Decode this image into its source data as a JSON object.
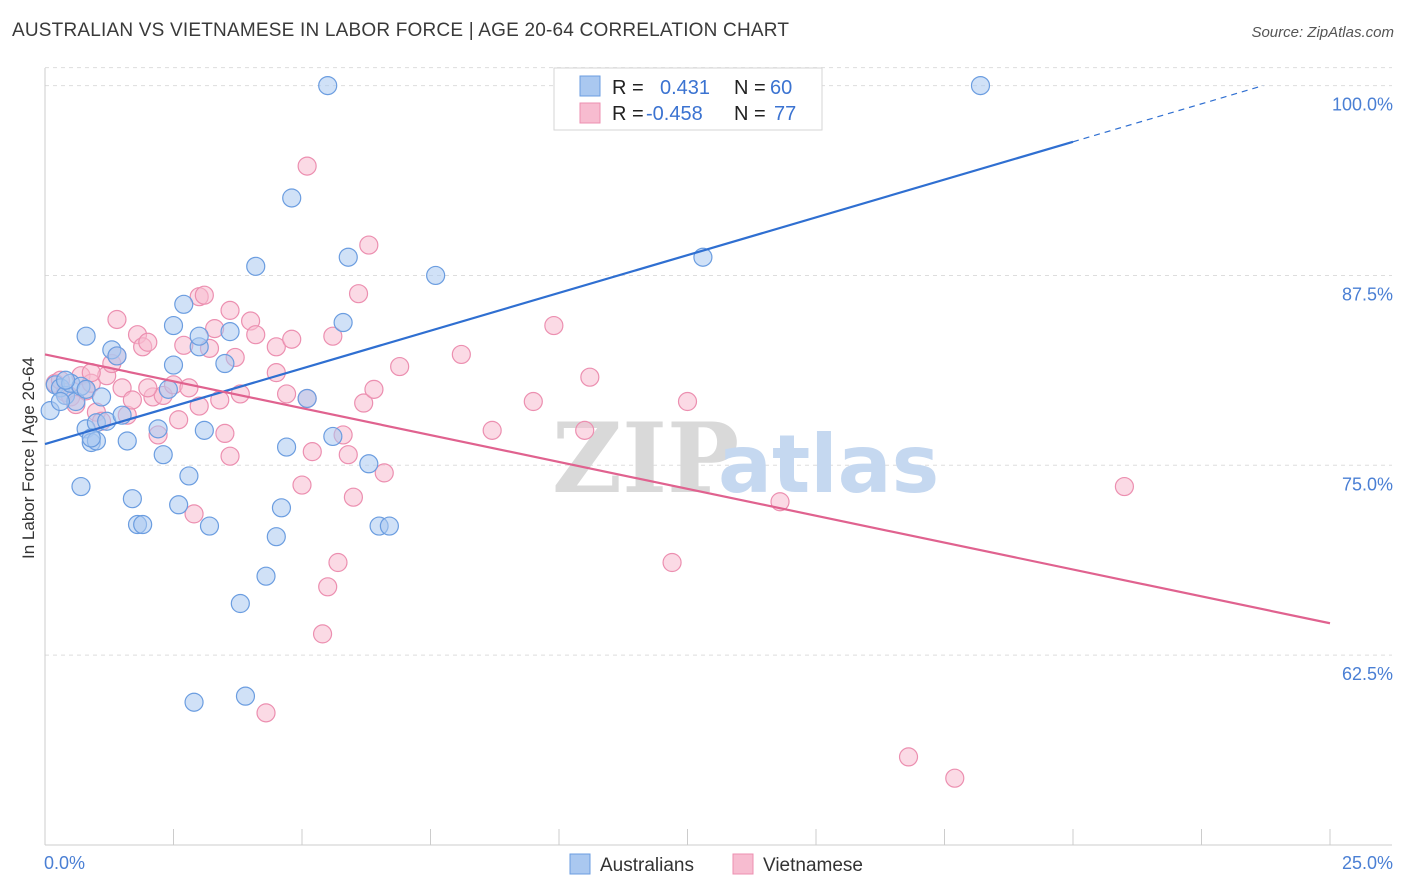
{
  "title": "AUSTRALIAN VS VIETNAMESE IN LABOR FORCE | AGE 20-64 CORRELATION CHART",
  "source": "Source: ZipAtlas.com",
  "watermark": {
    "zip": "ZIP",
    "atlas": "atlas"
  },
  "legend": {
    "rows": [
      {
        "r_label": "R =",
        "r_value": "0.431",
        "n_label": "N =",
        "n_value": "60"
      },
      {
        "r_label": "R =",
        "r_value": "-0.458",
        "n_label": "N =",
        "n_value": "77"
      }
    ]
  },
  "bottom_legend": [
    "Australians",
    "Vietnamese"
  ],
  "colors": {
    "blue_fill": "#aac8f0",
    "blue_stroke": "#6b9de0",
    "blue_line": "#2f6fd1",
    "pink_fill": "#f7bcd0",
    "pink_stroke": "#ec8fb0",
    "pink_line": "#e0628f",
    "grid": "#dddddd",
    "tick_text": "#4a7fd4"
  },
  "chart_data": {
    "type": "scatter",
    "title": "AUSTRALIAN VS VIETNAMESE IN LABOR FORCE | AGE 20-64 CORRELATION CHART",
    "xlabel": "",
    "ylabel": "In Labor Force | Age 20-64",
    "xlim": [
      0,
      25
    ],
    "ylim": [
      50,
      100.5
    ],
    "x_tick_labels": [
      "0.0%",
      "25.0%"
    ],
    "y_ticks": [
      62.5,
      75.0,
      87.5,
      100.0
    ],
    "y_tick_labels": [
      "62.5%",
      "75.0%",
      "87.5%",
      "100.0%"
    ],
    "grid": true,
    "series": [
      {
        "name": "Australians",
        "r": 0.431,
        "n": 60,
        "trend": {
          "x0": 0,
          "y0": 76.4,
          "x1": 20,
          "y1": 96.3,
          "dash_to_x": 23.7,
          "dash_to_y": 100.0
        },
        "points": [
          [
            0.1,
            78.6
          ],
          [
            0.2,
            80.3
          ],
          [
            0.3,
            80.1
          ],
          [
            0.4,
            79.6
          ],
          [
            0.5,
            80.4
          ],
          [
            0.6,
            79.2
          ],
          [
            0.7,
            80.2
          ],
          [
            0.7,
            73.6
          ],
          [
            0.8,
            83.5
          ],
          [
            0.8,
            80.0
          ],
          [
            0.8,
            77.4
          ],
          [
            0.9,
            76.5
          ],
          [
            1.0,
            77.8
          ],
          [
            1.0,
            76.6
          ],
          [
            1.2,
            77.9
          ],
          [
            1.3,
            82.6
          ],
          [
            1.4,
            82.2
          ],
          [
            1.6,
            76.6
          ],
          [
            1.7,
            72.8
          ],
          [
            1.8,
            71.1
          ],
          [
            1.9,
            71.1
          ],
          [
            2.2,
            77.4
          ],
          [
            2.4,
            80.0
          ],
          [
            2.5,
            84.2
          ],
          [
            2.5,
            81.6
          ],
          [
            2.6,
            72.4
          ],
          [
            2.7,
            85.6
          ],
          [
            2.8,
            74.3
          ],
          [
            3.0,
            82.8
          ],
          [
            3.0,
            83.5
          ],
          [
            3.1,
            77.3
          ],
          [
            3.2,
            71.0
          ],
          [
            3.5,
            81.7
          ],
          [
            3.6,
            83.8
          ],
          [
            3.8,
            65.9
          ],
          [
            3.9,
            59.8
          ],
          [
            4.1,
            88.1
          ],
          [
            4.3,
            67.7
          ],
          [
            4.5,
            70.3
          ],
          [
            4.6,
            72.2
          ],
          [
            4.7,
            76.2
          ],
          [
            4.8,
            92.6
          ],
          [
            5.1,
            79.4
          ],
          [
            5.5,
            100.0
          ],
          [
            5.6,
            76.9
          ],
          [
            5.8,
            84.4
          ],
          [
            5.9,
            88.7
          ],
          [
            6.3,
            75.1
          ],
          [
            6.5,
            71.0
          ],
          [
            6.7,
            71.0
          ],
          [
            7.6,
            87.5
          ],
          [
            12.8,
            88.7
          ],
          [
            18.2,
            100.0
          ],
          [
            0.3,
            79.2
          ],
          [
            2.9,
            59.4
          ],
          [
            1.1,
            79.5
          ],
          [
            0.4,
            80.6
          ],
          [
            1.5,
            78.3
          ],
          [
            0.9,
            76.8
          ],
          [
            2.3,
            75.7
          ]
        ]
      },
      {
        "name": "Vietnamese",
        "r": -0.458,
        "n": 77,
        "trend": {
          "x0": 0,
          "y0": 82.3,
          "x1": 25,
          "y1": 64.6
        },
        "points": [
          [
            0.2,
            80.4
          ],
          [
            0.3,
            80.6
          ],
          [
            0.4,
            79.8
          ],
          [
            0.5,
            79.5
          ],
          [
            0.6,
            79.0
          ],
          [
            0.7,
            80.9
          ],
          [
            0.8,
            79.9
          ],
          [
            0.9,
            80.4
          ],
          [
            1.0,
            78.5
          ],
          [
            1.1,
            77.9
          ],
          [
            1.2,
            80.9
          ],
          [
            1.3,
            81.7
          ],
          [
            1.4,
            82.2
          ],
          [
            1.5,
            80.1
          ],
          [
            1.6,
            78.3
          ],
          [
            1.7,
            79.3
          ],
          [
            1.8,
            83.6
          ],
          [
            1.9,
            82.8
          ],
          [
            2.0,
            83.1
          ],
          [
            2.1,
            79.5
          ],
          [
            2.2,
            77.0
          ],
          [
            2.3,
            79.6
          ],
          [
            2.5,
            80.3
          ],
          [
            2.6,
            78.0
          ],
          [
            2.7,
            82.9
          ],
          [
            2.8,
            80.1
          ],
          [
            2.9,
            71.8
          ],
          [
            3.0,
            86.1
          ],
          [
            3.1,
            86.2
          ],
          [
            3.2,
            82.7
          ],
          [
            3.3,
            84.0
          ],
          [
            3.4,
            79.3
          ],
          [
            3.5,
            77.1
          ],
          [
            3.6,
            75.6
          ],
          [
            3.7,
            82.1
          ],
          [
            3.8,
            79.7
          ],
          [
            4.0,
            84.5
          ],
          [
            4.1,
            83.6
          ],
          [
            4.3,
            58.7
          ],
          [
            4.5,
            82.8
          ],
          [
            4.7,
            79.7
          ],
          [
            4.8,
            83.3
          ],
          [
            5.0,
            73.7
          ],
          [
            5.1,
            79.4
          ],
          [
            5.2,
            75.9
          ],
          [
            5.4,
            63.9
          ],
          [
            5.5,
            67.0
          ],
          [
            5.6,
            83.5
          ],
          [
            5.7,
            68.6
          ],
          [
            5.8,
            77.0
          ],
          [
            5.9,
            75.7
          ],
          [
            6.0,
            72.9
          ],
          [
            6.1,
            86.3
          ],
          [
            6.2,
            79.1
          ],
          [
            6.3,
            89.5
          ],
          [
            6.4,
            80.0
          ],
          [
            6.6,
            74.5
          ],
          [
            6.9,
            81.5
          ],
          [
            8.1,
            82.3
          ],
          [
            8.7,
            77.3
          ],
          [
            9.5,
            79.2
          ],
          [
            9.9,
            84.2
          ],
          [
            10.5,
            77.3
          ],
          [
            10.6,
            80.8
          ],
          [
            12.2,
            68.6
          ],
          [
            12.5,
            79.2
          ],
          [
            14.3,
            72.6
          ],
          [
            16.8,
            55.8
          ],
          [
            17.7,
            54.4
          ],
          [
            21.0,
            73.6
          ],
          [
            5.1,
            94.7
          ],
          [
            3.6,
            85.2
          ],
          [
            1.4,
            84.6
          ],
          [
            0.9,
            81.1
          ],
          [
            2.0,
            80.1
          ],
          [
            4.5,
            81.1
          ],
          [
            3.0,
            78.9
          ]
        ]
      }
    ]
  }
}
